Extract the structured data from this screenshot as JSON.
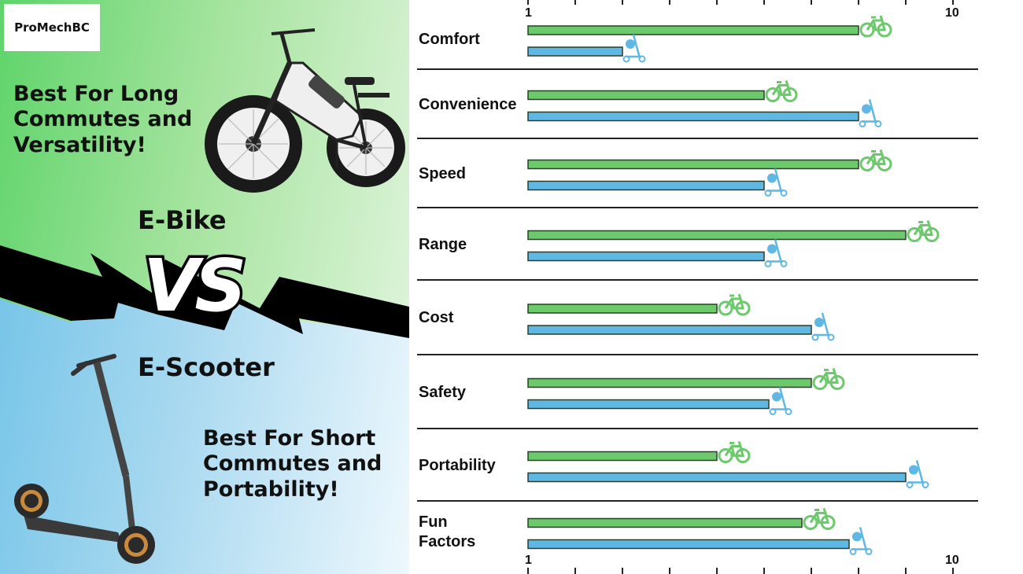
{
  "brand": "ProMechBC",
  "left_panel": {
    "ebike_tagline": "Best For Long Commutes and Versatility!",
    "ebike_title": "E-Bike",
    "vs_text": "VS",
    "escooter_title": "E-Scooter",
    "escooter_tagline": "Best For Short Commutes and Portability!"
  },
  "colors": {
    "ebike": "#6cc96c",
    "escooter": "#5fb8e4",
    "bar_stroke": "#2c3e2c"
  },
  "icons": {
    "ebike_marker": "bicycle-icon",
    "escooter_marker": "scooter-icon"
  },
  "chart_data": {
    "type": "bar",
    "orientation": "horizontal",
    "categories": [
      "Comfort",
      "Convenience",
      "Speed",
      "Range",
      "Cost",
      "Safety",
      "Portability",
      "Fun Factors"
    ],
    "series": [
      {
        "key": "ebike",
        "values": [
          8.0,
          6.0,
          8.0,
          9.0,
          5.0,
          7.0,
          5.0,
          6.8
        ]
      },
      {
        "key": "escooter",
        "values": [
          3.0,
          8.0,
          6.0,
          6.0,
          7.0,
          6.1,
          9.0,
          7.8
        ]
      }
    ],
    "xlim": [
      1,
      10
    ],
    "tick_labels": {
      "min": "1",
      "max": "10"
    },
    "grid": false,
    "legend": "none"
  }
}
